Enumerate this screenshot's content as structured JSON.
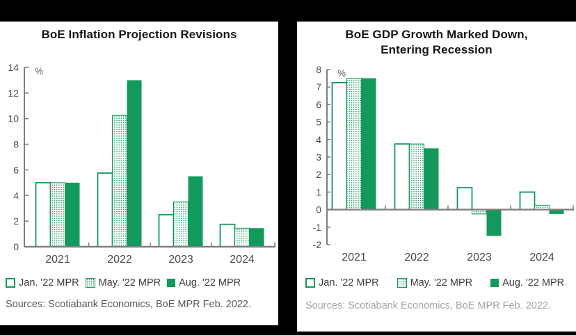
{
  "colors": {
    "green": "#12995B",
    "axis": "#7f7f7f",
    "background": "#000000",
    "card": "#ffffff"
  },
  "chart_data": [
    {
      "id": "inflation",
      "type": "bar",
      "title": "BoE Inflation Projection Revisions",
      "ylabel": "%",
      "categories": [
        "2021",
        "2022",
        "2023",
        "2024"
      ],
      "series": [
        {
          "name": "Jan. '22 MPR",
          "style": "hollow",
          "values": [
            5.0,
            5.75,
            2.5,
            1.75
          ]
        },
        {
          "name": "May. '22 MPR",
          "style": "dotted",
          "values": [
            5.0,
            10.25,
            3.5,
            1.45
          ]
        },
        {
          "name": "Aug. '22 MPR",
          "style": "solid",
          "values": [
            5.0,
            13.0,
            5.5,
            1.45
          ]
        }
      ],
      "ylim": [
        0,
        14
      ],
      "ytick_step": 2,
      "grid": false,
      "legend_position": "bottom",
      "source": "Sources: Scotiabank Economics, BoE MPR Feb. 2022."
    },
    {
      "id": "gdp",
      "type": "bar",
      "title": "BoE GDP Growth Marked Down,\nEntering Recession",
      "ylabel": "%",
      "categories": [
        "2021",
        "2022",
        "2023",
        "2024"
      ],
      "series": [
        {
          "name": "Jan. '22 MPR",
          "style": "hollow",
          "values": [
            7.25,
            3.75,
            1.25,
            1.0
          ]
        },
        {
          "name": "May. '22 MPR",
          "style": "dotted",
          "values": [
            7.5,
            3.75,
            -0.25,
            0.25
          ]
        },
        {
          "name": "Aug. '22 MPR",
          "style": "solid",
          "values": [
            7.5,
            3.5,
            -1.5,
            -0.25
          ]
        }
      ],
      "ylim": [
        -2,
        8
      ],
      "ytick_step": 1,
      "grid": false,
      "legend_position": "bottom",
      "source": "Sources: Scotiabank Economics, BoE MPR Feb. 2022."
    }
  ]
}
